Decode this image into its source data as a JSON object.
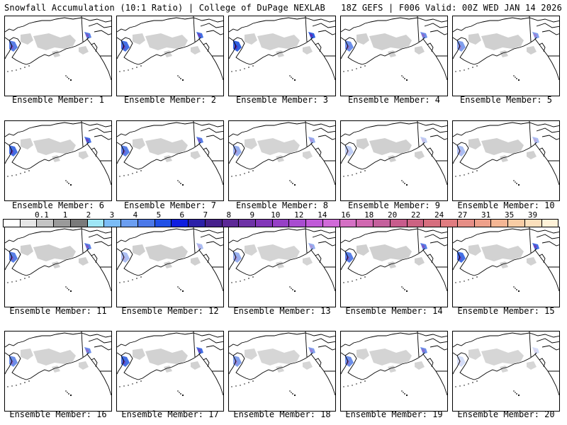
{
  "header": {
    "title": "Snowfall Accumulation (10:1 Ratio) | College of DuPage NEXLAB",
    "run_info": "18Z GEFS | F006 Valid: 00Z WED JAN 14 2026"
  },
  "colors": {
    "map_lines": "#000000",
    "snow_light": "#d0d0d0",
    "snow_blue": "#2f5fe0",
    "snow_purple": "#5a2db8"
  },
  "legend": {
    "ticks": [
      "0.1",
      "1",
      "2",
      "3",
      "4",
      "5",
      "6",
      "7",
      "8",
      "9",
      "10",
      "12",
      "14",
      "16",
      "18",
      "20",
      "22",
      "24",
      "27",
      "31",
      "35",
      "39"
    ],
    "colors": [
      "#ffffff",
      "#e6e6e6",
      "#c4c4c4",
      "#9a9a9a",
      "#7a7a7a",
      "#9ee6f6",
      "#7bbcf6",
      "#6b9ef0",
      "#4b78e8",
      "#2050e6",
      "#0f1ee0",
      "#2c20a8",
      "#46208c",
      "#5c2896",
      "#6e32a6",
      "#8236b8",
      "#9640c6",
      "#a84cd0",
      "#c05ad8",
      "#d06ad8",
      "#d470c4",
      "#d068b0",
      "#c4609c",
      "#c85c8c",
      "#cc6282",
      "#d66e7e",
      "#e07c80",
      "#e68e86",
      "#eea08a",
      "#f4b694",
      "#f8cca4",
      "#fce0bc",
      "#fff2d8"
    ]
  },
  "members": [
    {
      "label": "Ensemble Member: 1",
      "blue": 0.8,
      "gray": 1.0
    },
    {
      "label": "Ensemble Member: 2",
      "blue": 0.9,
      "gray": 0.9
    },
    {
      "label": "Ensemble Member: 3",
      "blue": 1.0,
      "gray": 0.9
    },
    {
      "label": "Ensemble Member: 4",
      "blue": 0.7,
      "gray": 1.0
    },
    {
      "label": "Ensemble Member: 5",
      "blue": 0.6,
      "gray": 1.0
    },
    {
      "label": "Ensemble Member: 6",
      "blue": 0.9,
      "gray": 0.9
    },
    {
      "label": "Ensemble Member: 7",
      "blue": 0.8,
      "gray": 0.9
    },
    {
      "label": "Ensemble Member: 8",
      "blue": 0.5,
      "gray": 0.8
    },
    {
      "label": "Ensemble Member: 9",
      "blue": 0.3,
      "gray": 1.0
    },
    {
      "label": "Ensemble Member: 10",
      "blue": 0.4,
      "gray": 1.0
    },
    {
      "label": "Ensemble Member: 11",
      "blue": 0.8,
      "gray": 1.0
    },
    {
      "label": "Ensemble Member: 12",
      "blue": 0.4,
      "gray": 1.0
    },
    {
      "label": "Ensemble Member: 13",
      "blue": 0.5,
      "gray": 0.8
    },
    {
      "label": "Ensemble Member: 14",
      "blue": 0.8,
      "gray": 1.0
    },
    {
      "label": "Ensemble Member: 15",
      "blue": 0.9,
      "gray": 0.9
    },
    {
      "label": "Ensemble Member: 16",
      "blue": 0.7,
      "gray": 0.8
    },
    {
      "label": "Ensemble Member: 17",
      "blue": 0.9,
      "gray": 0.9
    },
    {
      "label": "Ensemble Member: 18",
      "blue": 0.6,
      "gray": 0.7
    },
    {
      "label": "Ensemble Member: 19",
      "blue": 0.7,
      "gray": 0.8
    },
    {
      "label": "Ensemble Member: 20",
      "blue": 0.2,
      "gray": 0.7
    }
  ]
}
